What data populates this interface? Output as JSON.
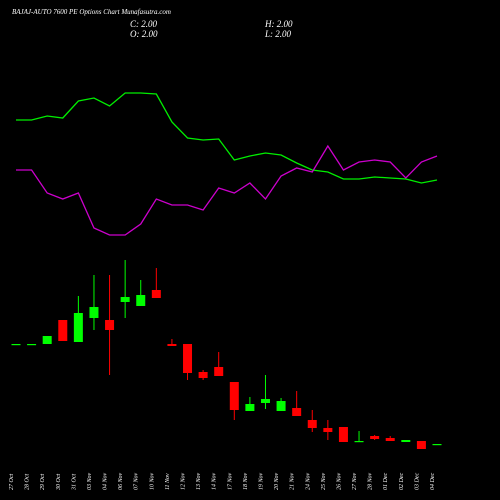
{
  "chart_data": {
    "type": "candlestick",
    "title": "BAJAJ-AUTO 7600 PE Options Chart Munafasutra.com",
    "stats": [
      "C: 2.00",
      "O: 2.00",
      "H: 2.00",
      "L: 2.00"
    ],
    "categories": [
      "27 Oct",
      "28 Oct",
      "29 Oct",
      "30 Oct",
      "31 Oct",
      "03 Nov",
      "04 Nov",
      "06 Nov",
      "07 Nov",
      "10 Nov",
      "11 Nov",
      "12 Nov",
      "13 Nov",
      "14 Nov",
      "17 Nov",
      "18 Nov",
      "19 Nov",
      "20 Nov",
      "21 Nov",
      "24 Nov",
      "25 Nov",
      "26 Nov",
      "27 Nov",
      "28 Nov",
      "01 Dec",
      "02 Dec",
      "03 Dec",
      "04 Dec"
    ],
    "open": [
      27,
      27,
      27,
      33,
      27.5,
      33.5,
      33,
      37.5,
      36.5,
      40.5,
      27,
      27,
      20,
      21.25,
      17.5,
      10.25,
      12.25,
      10.25,
      11,
      8,
      6,
      6.25,
      2.5,
      4,
      3.5,
      2.5,
      2.75,
      2
    ],
    "high": [
      27,
      27,
      29,
      33,
      39,
      44.25,
      44.25,
      48,
      43,
      46,
      28.25,
      27,
      20.5,
      25,
      17.5,
      13.75,
      19.25,
      13.5,
      15.25,
      10.5,
      8,
      6.25,
      5.25,
      4.25,
      4,
      3,
      2.75,
      2
    ],
    "low": [
      27,
      27,
      27,
      27.75,
      27.5,
      30.5,
      19.25,
      33.5,
      36.5,
      38.5,
      26.5,
      18,
      18,
      19,
      8,
      10.25,
      10.75,
      10.25,
      9,
      5,
      3,
      2.5,
      2.5,
      3,
      2.75,
      2.5,
      0.75,
      2
    ],
    "close": [
      27,
      27,
      29,
      27.75,
      34.75,
      36.25,
      30.5,
      38.75,
      39.25,
      38.5,
      26.5,
      19.75,
      18.5,
      19,
      10.5,
      12,
      13.25,
      12.75,
      9,
      6,
      5,
      2.5,
      2.75,
      3.25,
      2.75,
      3,
      0.75,
      2
    ],
    "up_color": "#00ff00",
    "down_color": "#ff0000",
    "ylim": [
      -0.75,
      48
    ],
    "lines": [
      {
        "color": "#00ee00",
        "values": [
          130,
          130,
          134,
          132,
          149,
          152,
          144,
          157,
          157,
          156,
          128,
          112,
          110,
          111,
          90,
          94,
          97,
          95,
          87,
          80,
          78,
          71,
          71,
          73,
          72,
          71,
          67,
          70
        ]
      },
      {
        "color": "#cc00cc",
        "values": [
          80,
          80,
          57,
          51,
          57,
          22,
          15,
          15,
          26,
          51,
          45,
          45,
          40,
          62,
          57,
          67,
          51,
          74,
          82,
          78,
          104,
          80,
          88,
          90,
          88,
          72,
          88,
          94
        ]
      }
    ],
    "y2lim": [
      0,
      170
    ]
  }
}
